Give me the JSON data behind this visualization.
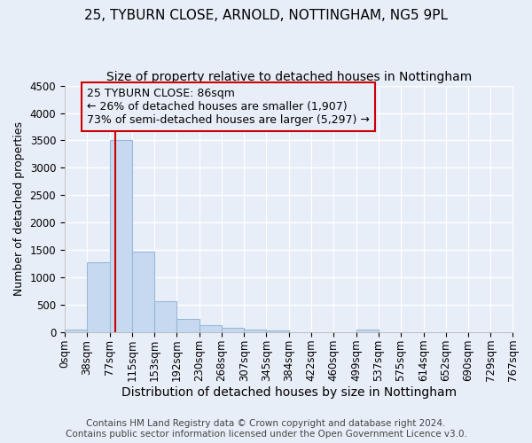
{
  "title1": "25, TYBURN CLOSE, ARNOLD, NOTTINGHAM, NG5 9PL",
  "title2": "Size of property relative to detached houses in Nottingham",
  "xlabel": "Distribution of detached houses by size in Nottingham",
  "ylabel": "Number of detached properties",
  "footer1": "Contains HM Land Registry data © Crown copyright and database right 2024.",
  "footer2": "Contains public sector information licensed under the Open Government Licence v3.0.",
  "bin_edges": [
    0,
    38,
    77,
    115,
    153,
    192,
    230,
    268,
    307,
    345,
    384,
    422,
    460,
    499,
    537,
    575,
    614,
    652,
    690,
    729,
    767
  ],
  "bar_heights": [
    50,
    1280,
    3500,
    1480,
    570,
    250,
    130,
    80,
    50,
    30,
    10,
    5,
    0,
    50,
    0,
    0,
    0,
    0,
    0,
    0
  ],
  "bar_color": "#c6d9f0",
  "bar_edge_color": "#9ab8d8",
  "property_size": 86,
  "property_line_color": "#cc0000",
  "annotation_text": "25 TYBURN CLOSE: 86sqm\n← 26% of detached houses are smaller (1,907)\n73% of semi-detached houses are larger (5,297) →",
  "annotation_box_color": "#cc0000",
  "ylim": [
    0,
    4500
  ],
  "yticks": [
    0,
    500,
    1000,
    1500,
    2000,
    2500,
    3000,
    3500,
    4000,
    4500
  ],
  "bg_color": "#e8eef8",
  "grid_color": "#ffffff",
  "title1_fontsize": 11,
  "title2_fontsize": 10,
  "xlabel_fontsize": 10,
  "ylabel_fontsize": 9,
  "tick_fontsize": 8.5,
  "annotation_fontsize": 9,
  "footer_fontsize": 7.5
}
